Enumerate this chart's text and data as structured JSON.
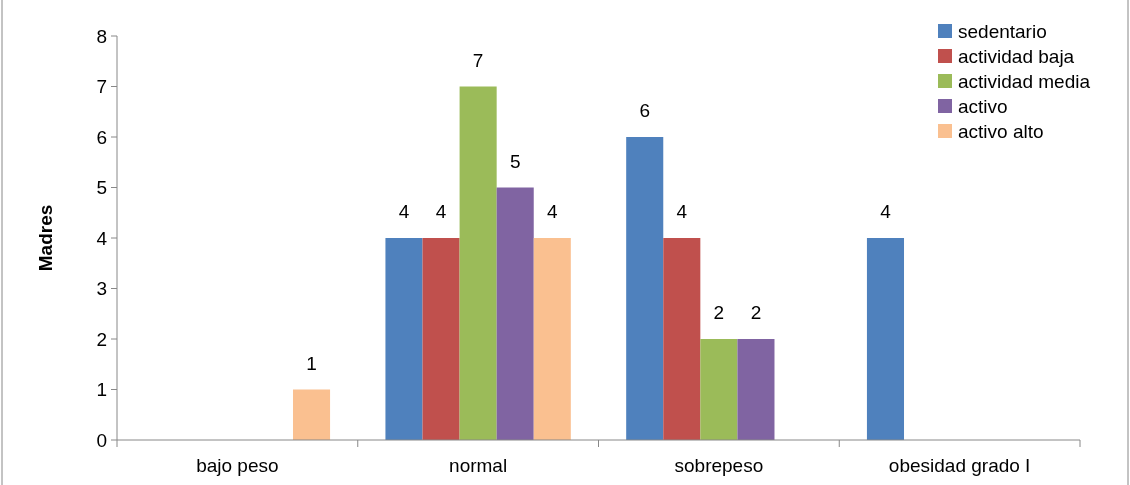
{
  "chart_data": {
    "type": "bar",
    "ylabel": "Madres",
    "categories": [
      "bajo peso",
      "normal",
      "sobrepeso",
      "obesidad grado I"
    ],
    "series": [
      {
        "name": "sedentario",
        "color": "#4f81bd",
        "values": [
          null,
          4,
          6,
          4
        ]
      },
      {
        "name": "actividad baja",
        "color": "#c0504d",
        "values": [
          null,
          4,
          4,
          null
        ]
      },
      {
        "name": "actividad media",
        "color": "#9bbb59",
        "values": [
          null,
          7,
          2,
          null
        ]
      },
      {
        "name": "activo",
        "color": "#8064a2",
        "values": [
          null,
          5,
          2,
          null
        ]
      },
      {
        "name": "activo alto",
        "color": "#fac090",
        "values": [
          1,
          4,
          null,
          null
        ]
      }
    ],
    "ylim": [
      0,
      8
    ],
    "yticks": [
      0,
      1,
      2,
      3,
      4,
      5,
      6,
      7,
      8
    ],
    "data_labels": true,
    "legend": "top right",
    "grid": false
  }
}
